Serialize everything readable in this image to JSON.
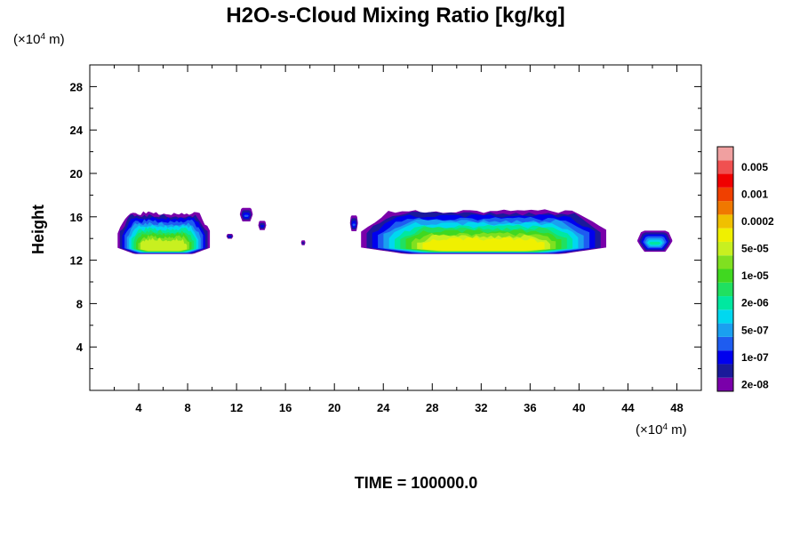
{
  "chart_data": {
    "type": "heatmap",
    "title": "H2O-s-Cloud Mixing Ratio [kg/kg]",
    "xlabel": "",
    "ylabel": "Height",
    "x_unit": {
      "pre": "(×10",
      "exp": "4",
      "post": " m)"
    },
    "y_unit": {
      "pre": "(×10",
      "exp": "4",
      "post": " m)"
    },
    "xlim": [
      0,
      50
    ],
    "ylim": [
      0,
      30
    ],
    "xticks": [
      "4",
      "8",
      "12",
      "16",
      "20",
      "24",
      "28",
      "32",
      "36",
      "40",
      "44",
      "48"
    ],
    "xtick_values": [
      4,
      8,
      12,
      16,
      20,
      24,
      28,
      32,
      36,
      40,
      44,
      48
    ],
    "yticks": [
      "4",
      "8",
      "12",
      "16",
      "20",
      "24",
      "28"
    ],
    "ytick_values": [
      4,
      8,
      12,
      16,
      20,
      24,
      28
    ],
    "grid": false,
    "footer": "TIME = 100000.0",
    "colorbar": {
      "position": "right",
      "levels": [
        {
          "color": "#7a00aa",
          "label": "2e-08"
        },
        {
          "color": "#1a1a9a",
          "label": ""
        },
        {
          "color": "#0000ee",
          "label": "1e-07"
        },
        {
          "color": "#1e5cf0",
          "label": ""
        },
        {
          "color": "#1aa0f0",
          "label": "5e-07"
        },
        {
          "color": "#00d8f0",
          "label": ""
        },
        {
          "color": "#00e8a0",
          "label": "2e-06"
        },
        {
          "color": "#20e060",
          "label": ""
        },
        {
          "color": "#40d820",
          "label": "1e-05"
        },
        {
          "color": "#80e020",
          "label": ""
        },
        {
          "color": "#c8f020",
          "label": "5e-05"
        },
        {
          "color": "#f0f000",
          "label": ""
        },
        {
          "color": "#f0c000",
          "label": "0.0002"
        },
        {
          "color": "#f07800",
          "label": ""
        },
        {
          "color": "#f04000",
          "label": "0.001"
        },
        {
          "color": "#f00000",
          "label": ""
        },
        {
          "color": "#f05050",
          "label": "0.005"
        },
        {
          "color": "#f0a0a0",
          "label": ""
        }
      ]
    },
    "cloud_regions": [
      {
        "name": "left-cloud",
        "x0": 2.3,
        "x1": 9.8,
        "top": 16.3,
        "bottom": 12.6,
        "peak_level": 10
      },
      {
        "name": "main-cloud",
        "x0": 22.2,
        "x1": 42.2,
        "top": 16.5,
        "bottom": 12.6,
        "peak_level": 11
      },
      {
        "name": "right-cloud",
        "x0": 44.8,
        "x1": 47.6,
        "top": 14.7,
        "bottom": 12.8,
        "peak_level": 7
      },
      {
        "name": "small-cloud-1",
        "x0": 12.3,
        "x1": 13.3,
        "top": 16.8,
        "bottom": 15.6,
        "peak_level": 3
      },
      {
        "name": "small-cloud-2",
        "x0": 13.8,
        "x1": 14.4,
        "top": 15.6,
        "bottom": 14.8,
        "peak_level": 2
      },
      {
        "name": "small-cloud-3",
        "x0": 11.2,
        "x1": 11.7,
        "top": 14.4,
        "bottom": 14.0,
        "peak_level": 2
      },
      {
        "name": "small-cloud-4",
        "x0": 17.3,
        "x1": 17.6,
        "top": 13.8,
        "bottom": 13.4,
        "peak_level": 1
      },
      {
        "name": "small-cloud-5",
        "x0": 21.3,
        "x1": 21.9,
        "top": 16.1,
        "bottom": 14.7,
        "peak_level": 3
      }
    ]
  }
}
